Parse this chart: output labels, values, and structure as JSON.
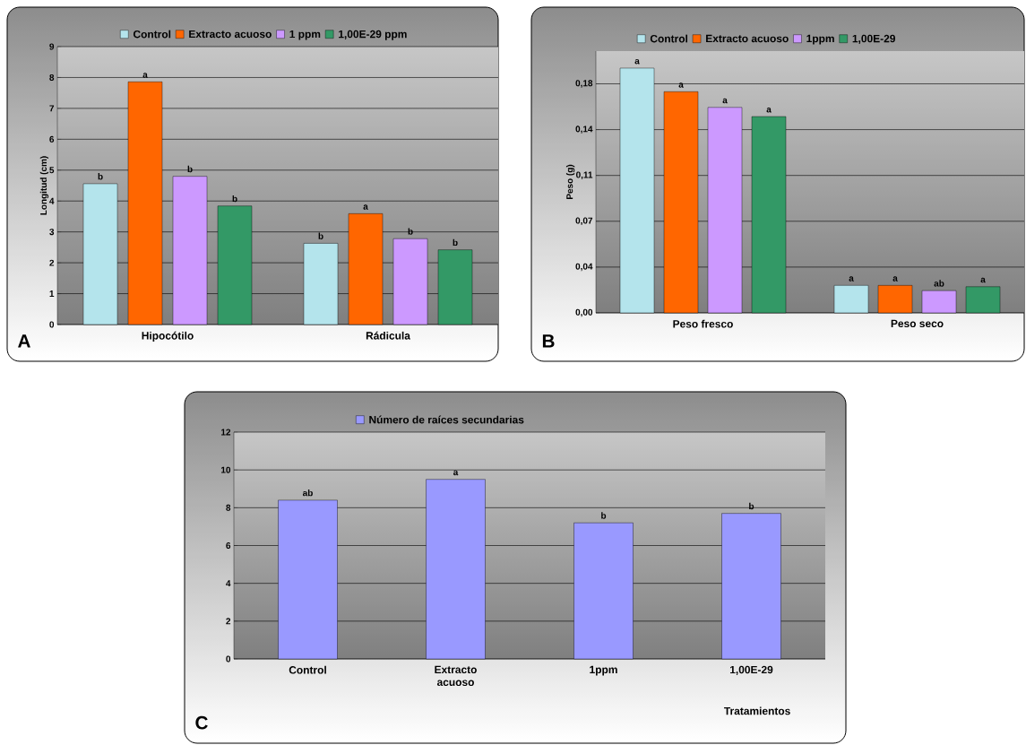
{
  "chart_data": [
    {
      "type": "bar",
      "ylabel": "Longitud (cm)",
      "categories": [
        "Hipocótilo",
        "Rádicula"
      ],
      "series": [
        {
          "name": "Control",
          "color": "#b4e4ec",
          "values": [
            4.56,
            2.63
          ],
          "value_labels": [
            "b",
            "b"
          ]
        },
        {
          "name": "Extracto acuoso",
          "color": "#ff6600",
          "values": [
            7.86,
            3.59
          ],
          "value_labels": [
            "a",
            "a"
          ]
        },
        {
          "name": "1 ppm",
          "color": "#cc99ff",
          "values": [
            4.8,
            2.78
          ],
          "value_labels": [
            "b",
            "b"
          ]
        },
        {
          "name": "1,00E-29 ppm",
          "color": "#339966",
          "values": [
            3.84,
            2.42
          ],
          "value_labels": [
            "b",
            "b"
          ]
        }
      ],
      "ylim": [
        0,
        9
      ],
      "yticks": [
        0,
        1,
        2,
        3,
        4,
        5,
        6,
        7,
        8,
        9
      ],
      "grid": "y",
      "legend": "top",
      "annotations": [
        "A"
      ]
    },
    {
      "type": "bar",
      "ylabel": "Peso (g)",
      "categories": [
        "Peso fresco",
        "Peso seco"
      ],
      "series": [
        {
          "name": "Control",
          "color": "#b4e4ec",
          "values": [
            0.187,
            0.021
          ],
          "value_labels": [
            "a",
            "a"
          ]
        },
        {
          "name": "Extracto acuoso",
          "color": "#ff6600",
          "values": [
            0.169,
            0.021
          ],
          "value_labels": [
            "a",
            "a"
          ]
        },
        {
          "name": "1ppm",
          "color": "#cc99ff",
          "values": [
            0.157,
            0.017
          ],
          "value_labels": [
            "a",
            "ab"
          ]
        },
        {
          "name": "1,00E-29",
          "color": "#339966",
          "values": [
            0.15,
            0.02
          ],
          "value_labels": [
            "a",
            "a"
          ]
        }
      ],
      "ylim": [
        0,
        0.2
      ],
      "yticks": [
        {
          "value": 0,
          "label": "0,00"
        },
        {
          "value": 0.035,
          "label": "0,04"
        },
        {
          "value": 0.07,
          "label": "0,07"
        },
        {
          "value": 0.105,
          "label": "0,11"
        },
        {
          "value": 0.14,
          "label": "0,14"
        },
        {
          "value": 0.175,
          "label": "0,18"
        }
      ],
      "grid": "y",
      "legend": "top",
      "annotations": [
        "B"
      ]
    },
    {
      "type": "bar",
      "xlabel": "Tratamientos",
      "categories": [
        "Control",
        "Extracto acuoso",
        "1ppm",
        "1,00E-29"
      ],
      "series": [
        {
          "name": "Número de raíces secundarias",
          "color": "#9999ff",
          "values": [
            8.4,
            9.5,
            7.2,
            7.7
          ],
          "value_labels": [
            "ab",
            "a",
            "b",
            "b"
          ]
        }
      ],
      "ylim": [
        0,
        12
      ],
      "yticks": [
        0,
        2,
        4,
        6,
        8,
        10,
        12
      ],
      "grid": "y",
      "legend": "top",
      "annotations": [
        "C"
      ]
    }
  ]
}
